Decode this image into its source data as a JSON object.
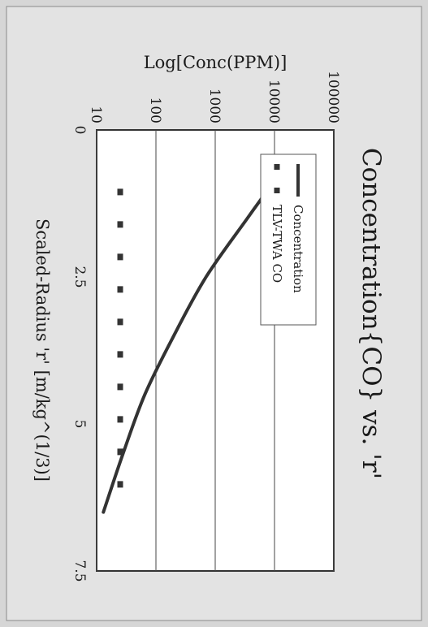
{
  "chart_data": {
    "type": "line",
    "title": "Concentration{CO} vs. 'r'",
    "xlabel": "Scaled-Radius 'r' [m/kg^(1/3)]",
    "ylabel": "Log[Conc(PPM)]",
    "xlim": [
      0,
      7.5
    ],
    "ylim": [
      10,
      100000
    ],
    "yscale": "log",
    "x_ticks": [
      "0",
      "2.5",
      "5",
      "7.5"
    ],
    "y_ticks": [
      "100000",
      "10000",
      "1000",
      "100",
      "10"
    ],
    "grid": "horizontal",
    "legend_position": "top-left",
    "rotation": "page rotated 90 degrees clockwise",
    "series": [
      {
        "name": "Concentration",
        "style": "solid",
        "color": "#333333",
        "points": [
          [
            0.75,
            12000
          ],
          [
            1.5,
            3500
          ],
          [
            2.5,
            700
          ],
          [
            3.5,
            200
          ],
          [
            4.5,
            65
          ],
          [
            5.5,
            28
          ],
          [
            6.5,
            13
          ]
        ]
      },
      {
        "name": "TLV-TWA CO",
        "style": "dashed",
        "color": "#333333",
        "points": [
          [
            1,
            25
          ],
          [
            6.5,
            25
          ]
        ]
      }
    ]
  }
}
